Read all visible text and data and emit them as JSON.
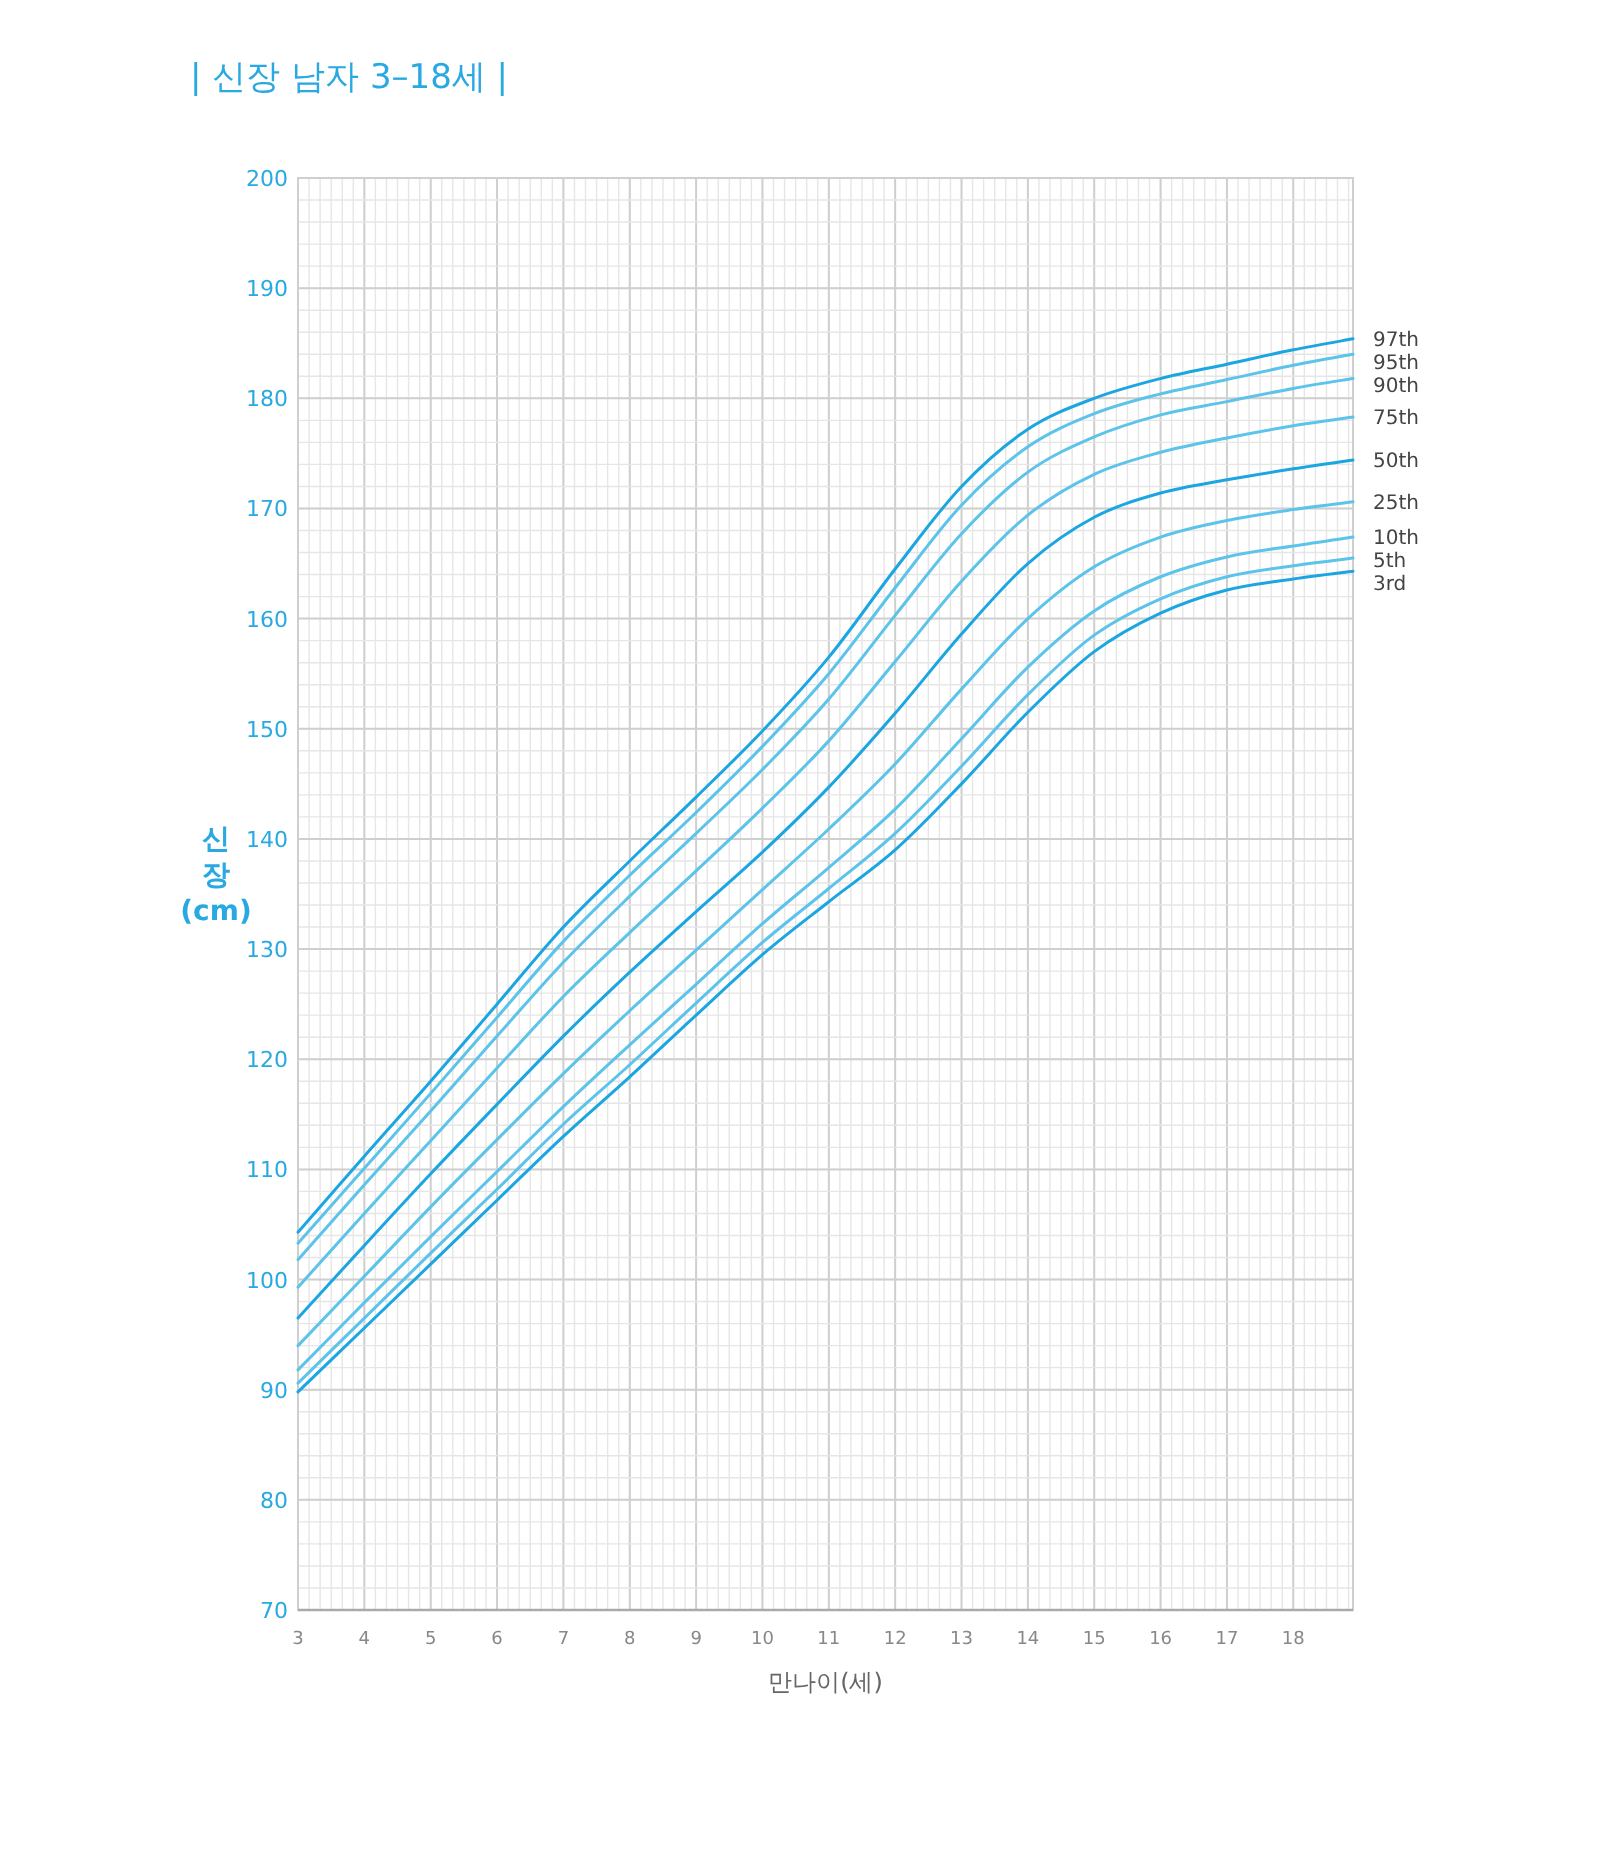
{
  "chart_data": {
    "type": "line",
    "title": "| 신장 남자 3–18세 |",
    "xlabel": "만나이(세)",
    "ylabel": "신\n장\n(cm)",
    "x": [
      3,
      4,
      5,
      6,
      7,
      8,
      9,
      10,
      11,
      12,
      13,
      14,
      15,
      16,
      17,
      18,
      18.9
    ],
    "xlim": [
      3,
      18.9
    ],
    "xticks": [
      3,
      4,
      5,
      6,
      7,
      8,
      9,
      10,
      11,
      12,
      13,
      14,
      15,
      16,
      17,
      18
    ],
    "ylim": [
      70,
      200
    ],
    "yticks": [
      70,
      80,
      90,
      100,
      110,
      120,
      130,
      140,
      150,
      160,
      170,
      180,
      190,
      200
    ],
    "grid": true,
    "marker": "none",
    "line_style": "solid",
    "series": [
      {
        "name": "97th",
        "color": "#1ba6e2",
        "values": [
          104.3,
          111.2,
          118.0,
          125.0,
          132.0,
          138.0,
          143.8,
          149.8,
          156.5,
          164.5,
          172.0,
          177.2,
          180.0,
          181.8,
          183.1,
          184.4,
          185.4
        ]
      },
      {
        "name": "95th",
        "color": "#5cc3ea",
        "values": [
          103.3,
          110.1,
          116.9,
          123.8,
          130.7,
          136.7,
          142.4,
          148.4,
          155.0,
          162.8,
          170.3,
          175.6,
          178.6,
          180.4,
          181.7,
          183.0,
          184.0
        ]
      },
      {
        "name": "90th",
        "color": "#5cc3ea",
        "values": [
          101.8,
          108.6,
          115.3,
          122.1,
          128.8,
          134.8,
          140.5,
          146.3,
          152.7,
          160.3,
          167.7,
          173.3,
          176.5,
          178.5,
          179.7,
          180.9,
          181.8
        ]
      },
      {
        "name": "75th",
        "color": "#5cc3ea",
        "values": [
          99.3,
          106.0,
          112.6,
          119.2,
          125.7,
          131.5,
          137.1,
          142.8,
          148.9,
          156.1,
          163.4,
          169.4,
          173.1,
          175.1,
          176.4,
          177.5,
          178.3
        ]
      },
      {
        "name": "50th",
        "color": "#1ba6e2",
        "values": [
          96.5,
          103.1,
          109.6,
          115.9,
          122.1,
          127.9,
          133.4,
          138.8,
          144.7,
          151.4,
          158.6,
          165.0,
          169.2,
          171.4,
          172.6,
          173.6,
          174.4
        ]
      },
      {
        "name": "25th",
        "color": "#5cc3ea",
        "values": [
          94.0,
          100.3,
          106.6,
          112.7,
          118.7,
          124.4,
          129.9,
          135.4,
          140.9,
          146.8,
          153.6,
          160.0,
          164.7,
          167.4,
          168.9,
          169.9,
          170.6
        ]
      },
      {
        "name": "10th",
        "color": "#5cc3ea",
        "values": [
          91.8,
          97.9,
          103.9,
          109.8,
          115.7,
          121.3,
          126.8,
          132.3,
          137.4,
          142.7,
          149.1,
          155.6,
          160.7,
          163.8,
          165.6,
          166.6,
          167.4
        ]
      },
      {
        "name": "5th",
        "color": "#5cc3ea",
        "values": [
          90.6,
          96.5,
          102.4,
          108.2,
          114.1,
          119.5,
          125.1,
          130.6,
          135.5,
          140.5,
          146.6,
          153.1,
          158.5,
          161.8,
          163.8,
          164.8,
          165.5
        ]
      },
      {
        "name": "3rd",
        "color": "#1ba6e2",
        "values": [
          89.8,
          95.6,
          101.4,
          107.2,
          113.0,
          118.4,
          124.0,
          129.5,
          134.3,
          139.0,
          145.0,
          151.5,
          157.0,
          160.5,
          162.6,
          163.6,
          164.3
        ]
      }
    ]
  }
}
